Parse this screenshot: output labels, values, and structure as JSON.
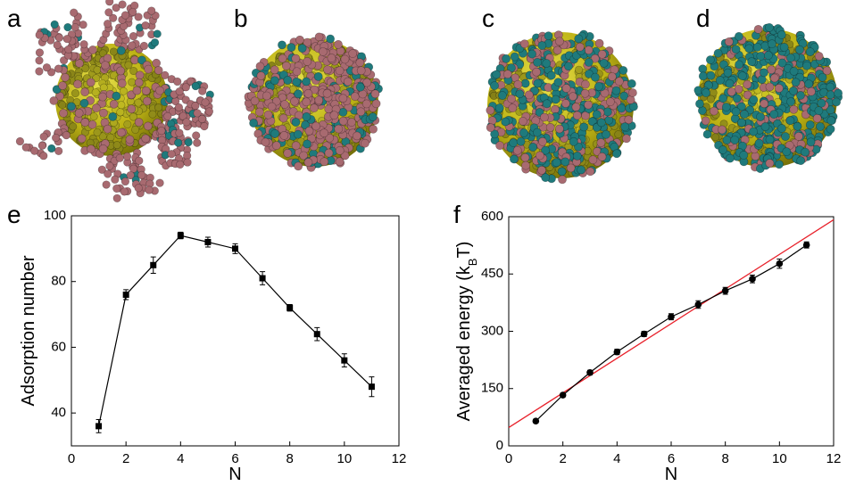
{
  "panels": [
    {
      "label": "a"
    },
    {
      "label": "b"
    },
    {
      "label": "c"
    },
    {
      "label": "d"
    }
  ],
  "chart_data": [
    {
      "type": "line",
      "panel_label": "e",
      "x_label": "N",
      "y_label": "Adsorption number",
      "marker": "square",
      "color": "#000000",
      "x": [
        1,
        2,
        3,
        4,
        5,
        6,
        7,
        8,
        9,
        10,
        11
      ],
      "values": [
        36,
        76,
        85,
        94,
        92,
        90,
        81,
        72,
        64,
        56,
        48
      ],
      "errors": [
        2,
        1.5,
        2.5,
        1,
        1.5,
        1.5,
        2,
        1,
        2,
        2,
        3
      ],
      "xlim": [
        0,
        12
      ],
      "xticks": [
        0,
        2,
        4,
        6,
        8,
        10,
        12
      ],
      "ylim": [
        30,
        100
      ],
      "yticks": [
        40,
        60,
        80,
        100
      ],
      "grid": false
    },
    {
      "type": "line",
      "panel_label": "f",
      "x_label": "N",
      "y_label_parts": [
        "Averaged energy (k",
        "B",
        "T)"
      ],
      "marker": "circle",
      "color": "#000000",
      "x": [
        1,
        2,
        3,
        4,
        5,
        6,
        7,
        8,
        9,
        10,
        11
      ],
      "values": [
        65,
        133,
        192,
        246,
        293,
        338,
        370,
        406,
        437,
        477,
        526
      ],
      "errors": [
        5,
        5,
        6,
        7,
        7,
        8,
        10,
        9,
        10,
        12,
        8
      ],
      "fit_line": {
        "color": "#e8202a",
        "x": [
          0,
          12
        ],
        "values": [
          48,
          592
        ]
      },
      "xlim": [
        0,
        12
      ],
      "xticks": [
        0,
        2,
        4,
        6,
        8,
        10,
        12
      ],
      "ylim": [
        0,
        600
      ],
      "yticks": [
        0,
        150,
        300,
        450,
        600
      ],
      "grid": false
    }
  ]
}
